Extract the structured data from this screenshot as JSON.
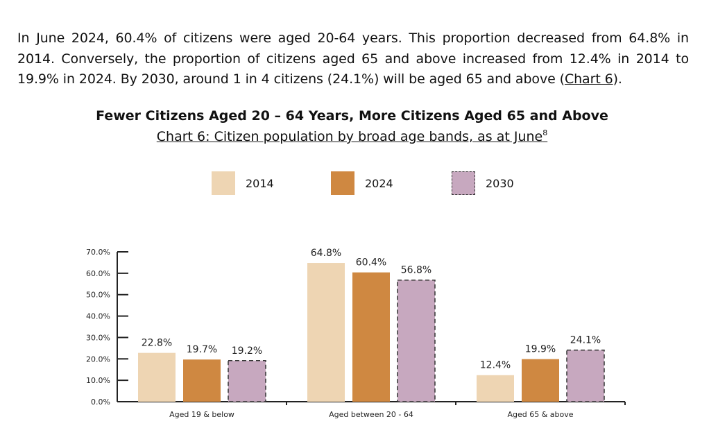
{
  "paragraph": {
    "part1": "In June 2024, 60.4% of citizens were aged 20-64 years. This proportion decreased from 64.8% in 2014. Conversely, the proportion of citizens aged 65 and above increased from 12.4% in 2014 to 19.9% in 2024. By 2030, around 1 in 4 citizens (24.1%) will be aged 65 and above (",
    "link": "Chart 6",
    "part2": ")."
  },
  "chart_data": {
    "type": "bar",
    "title": "Fewer Citizens Aged 20 – 64 Years, More Citizens Aged 65 and Above",
    "subtitle": "Chart 6: Citizen population by broad age bands, as at June",
    "footnote_marker": "8",
    "categories": [
      "Aged 19 & below",
      "Aged between 20 - 64",
      "Aged 65 & above"
    ],
    "series": [
      {
        "name": "2014",
        "values": [
          22.8,
          64.8,
          12.4
        ],
        "labels": [
          "22.8%",
          "64.8%",
          "12.4%"
        ],
        "color": "#eed5b3",
        "dashed": false
      },
      {
        "name": "2024",
        "values": [
          19.7,
          60.4,
          19.9
        ],
        "labels": [
          "19.7%",
          "60.4%",
          "19.9%"
        ],
        "color": "#cf8841",
        "dashed": false
      },
      {
        "name": "2030",
        "values": [
          19.2,
          56.8,
          24.1
        ],
        "labels": [
          "19.2%",
          "56.8%",
          "24.1%"
        ],
        "color": "#c7a8bf",
        "dashed": true
      }
    ],
    "y_ticks": [
      "0.0%",
      "10.0%",
      "20.0%",
      "30.0%",
      "40.0%",
      "50.0%",
      "60.0%",
      "70.0%"
    ],
    "ylim": [
      0,
      70
    ],
    "legend_position": "top",
    "grid": false
  }
}
